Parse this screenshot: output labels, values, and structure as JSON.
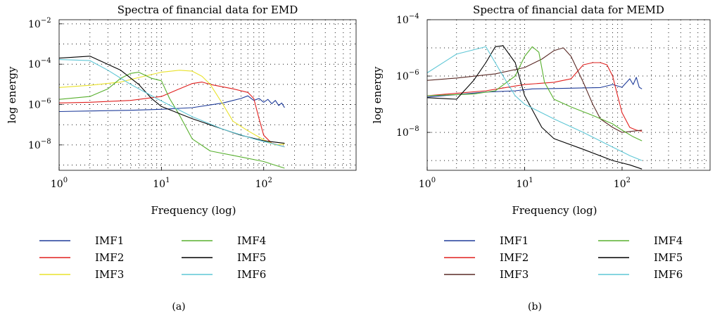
{
  "chart_data": [
    {
      "type": "line",
      "panel_label": "(a)",
      "title": "Spectra of financial data for EMD",
      "xlabel": "Frequency (log)",
      "ylabel": "log energy",
      "xscale": "log",
      "yscale": "log",
      "xlim": [
        1,
        800
      ],
      "ylim": [
        5.5e-10,
        0.016
      ],
      "x_ticks": [
        {
          "base": "10",
          "exp": "0",
          "value": 1
        },
        {
          "base": "10",
          "exp": "1",
          "value": 10
        },
        {
          "base": "10",
          "exp": "2",
          "value": 100
        }
      ],
      "y_ticks": [
        {
          "base": "10",
          "exp": "−8",
          "value": 1e-08
        },
        {
          "base": "10",
          "exp": "−6",
          "value": 1e-06
        },
        {
          "base": "10",
          "exp": "−4",
          "value": 0.0001
        },
        {
          "base": "10",
          "exp": "−2",
          "value": 0.01
        }
      ],
      "grid": true,
      "legend_position": "below",
      "series": [
        {
          "name": "IMF1",
          "color": "#1f3c9a",
          "points": [
            [
              1,
              4.5e-07
            ],
            [
              2,
              4.8e-07
            ],
            [
              5,
              5.2e-07
            ],
            [
              10,
              5.8e-07
            ],
            [
              20,
              7e-07
            ],
            [
              40,
              1.2e-06
            ],
            [
              60,
              2e-06
            ],
            [
              70,
              2.7e-06
            ],
            [
              80,
              1.6e-06
            ],
            [
              90,
              2e-06
            ],
            [
              100,
              1.3e-06
            ],
            [
              110,
              1.8e-06
            ],
            [
              120,
              1.1e-06
            ],
            [
              130,
              1.6e-06
            ],
            [
              140,
              9e-07
            ],
            [
              150,
              1.2e-06
            ],
            [
              160,
              7e-07
            ]
          ]
        },
        {
          "name": "IMF2",
          "color": "#e0201e",
          "points": [
            [
              1,
              1.2e-06
            ],
            [
              2,
              1.3e-06
            ],
            [
              5,
              1.6e-06
            ],
            [
              10,
              2.5e-06
            ],
            [
              15,
              6e-06
            ],
            [
              20,
              1.1e-05
            ],
            [
              25,
              1.3e-05
            ],
            [
              30,
              1e-05
            ],
            [
              50,
              6e-06
            ],
            [
              70,
              4e-06
            ],
            [
              80,
              2e-06
            ],
            [
              90,
              2e-07
            ],
            [
              100,
              3e-08
            ],
            [
              120,
              1.2e-08
            ],
            [
              160,
              8e-09
            ]
          ]
        },
        {
          "name": "IMF3",
          "color": "#e9e22b",
          "points": [
            [
              1,
              7e-06
            ],
            [
              2,
              9e-06
            ],
            [
              4,
              1.3e-05
            ],
            [
              6,
              2.2e-05
            ],
            [
              10,
              4e-05
            ],
            [
              15,
              5e-05
            ],
            [
              20,
              4.5e-05
            ],
            [
              25,
              2.5e-05
            ],
            [
              30,
              1e-05
            ],
            [
              40,
              1e-06
            ],
            [
              50,
              1.5e-07
            ],
            [
              70,
              5e-08
            ],
            [
              100,
              1.8e-08
            ],
            [
              130,
              1e-08
            ],
            [
              160,
              1.1e-08
            ]
          ]
        },
        {
          "name": "IMF4",
          "color": "#58b02e",
          "points": [
            [
              1,
              1.8e-06
            ],
            [
              2,
              2.5e-06
            ],
            [
              3,
              6e-06
            ],
            [
              4,
              2e-05
            ],
            [
              5,
              3.5e-05
            ],
            [
              6,
              4e-05
            ],
            [
              8,
              2e-05
            ],
            [
              10,
              1.5e-05
            ],
            [
              12,
              2e-06
            ],
            [
              15,
              3e-07
            ],
            [
              20,
              2e-08
            ],
            [
              30,
              5e-09
            ],
            [
              60,
              2.5e-09
            ],
            [
              100,
              1.5e-09
            ],
            [
              160,
              7e-10
            ]
          ]
        },
        {
          "name": "IMF5",
          "color": "#000000",
          "points": [
            [
              1,
              0.0002
            ],
            [
              2,
              0.00025
            ],
            [
              4,
              5e-05
            ],
            [
              6,
              1e-05
            ],
            [
              8,
              2e-06
            ],
            [
              10,
              8e-07
            ],
            [
              20,
              2e-07
            ],
            [
              40,
              6e-08
            ],
            [
              60,
              3e-08
            ],
            [
              100,
              1.6e-08
            ],
            [
              160,
              1.2e-08
            ]
          ]
        },
        {
          "name": "IMF6",
          "color": "#5fc7d6",
          "points": [
            [
              1,
              0.00017
            ],
            [
              2,
              0.00015
            ],
            [
              3,
              5e-05
            ],
            [
              5,
              1e-05
            ],
            [
              10,
              1.5e-06
            ],
            [
              20,
              2.5e-07
            ],
            [
              40,
              6e-08
            ],
            [
              80,
              2e-08
            ],
            [
              160,
              8e-09
            ]
          ]
        }
      ]
    },
    {
      "type": "line",
      "panel_label": "(b)",
      "title": "Spectra of financial data for MEMD",
      "xlabel": "Frequency (log)",
      "ylabel": "log energy",
      "xscale": "log",
      "yscale": "log",
      "xlim": [
        1,
        800
      ],
      "ylim": [
        4.5e-10,
        0.0001
      ],
      "x_ticks": [
        {
          "base": "10",
          "exp": "0",
          "value": 1
        },
        {
          "base": "10",
          "exp": "1",
          "value": 10
        },
        {
          "base": "10",
          "exp": "2",
          "value": 100
        }
      ],
      "y_ticks": [
        {
          "base": "10",
          "exp": "−8",
          "value": 1e-08
        },
        {
          "base": "10",
          "exp": "−6",
          "value": 1e-06
        },
        {
          "base": "10",
          "exp": "−4",
          "value": 0.0001
        }
      ],
      "grid": true,
      "legend_position": "below",
      "series": [
        {
          "name": "IMF1",
          "color": "#1f3c9a",
          "points": [
            [
              1,
              1.8e-07
            ],
            [
              2,
              2.2e-07
            ],
            [
              4,
              2.7e-07
            ],
            [
              8,
              3e-07
            ],
            [
              12,
              3.5e-07
            ],
            [
              20,
              3.6e-07
            ],
            [
              40,
              3.8e-07
            ],
            [
              60,
              3.9e-07
            ],
            [
              80,
              5e-07
            ],
            [
              100,
              4e-07
            ],
            [
              120,
              8e-07
            ],
            [
              130,
              5e-07
            ],
            [
              140,
              9e-07
            ],
            [
              150,
              4e-07
            ],
            [
              160,
              3.5e-07
            ]
          ]
        },
        {
          "name": "IMF2",
          "color": "#e0201e",
          "points": [
            [
              1,
              2e-07
            ],
            [
              4,
              3e-07
            ],
            [
              10,
              5e-07
            ],
            [
              20,
              6e-07
            ],
            [
              30,
              8e-07
            ],
            [
              40,
              2.5e-06
            ],
            [
              50,
              3e-06
            ],
            [
              60,
              3e-06
            ],
            [
              70,
              2.5e-06
            ],
            [
              80,
              1e-06
            ],
            [
              90,
              2e-07
            ],
            [
              100,
              5e-08
            ],
            [
              120,
              1.5e-08
            ],
            [
              140,
              1.2e-08
            ],
            [
              160,
              1.1e-08
            ]
          ]
        },
        {
          "name": "IMF3",
          "color": "#5a2a26",
          "points": [
            [
              1,
              7e-07
            ],
            [
              2,
              8.5e-07
            ],
            [
              5,
              1.2e-06
            ],
            [
              10,
              2e-06
            ],
            [
              15,
              4e-06
            ],
            [
              20,
              8e-06
            ],
            [
              25,
              1e-05
            ],
            [
              30,
              5e-06
            ],
            [
              40,
              6e-07
            ],
            [
              50,
              1e-07
            ],
            [
              60,
              3e-08
            ],
            [
              80,
              1.5e-08
            ],
            [
              100,
              1e-08
            ],
            [
              160,
              1.2e-08
            ]
          ]
        },
        {
          "name": "IMF4",
          "color": "#58b02e",
          "points": [
            [
              1,
              2e-07
            ],
            [
              3,
              2.3e-07
            ],
            [
              5,
              3e-07
            ],
            [
              8,
              1e-06
            ],
            [
              10,
              5e-06
            ],
            [
              12,
              1.1e-05
            ],
            [
              14,
              7e-06
            ],
            [
              16,
              6e-07
            ],
            [
              20,
              1.5e-07
            ],
            [
              30,
              8e-08
            ],
            [
              50,
              4e-08
            ],
            [
              80,
              2e-08
            ],
            [
              100,
              1.2e-08
            ],
            [
              130,
              7e-09
            ],
            [
              160,
              5e-09
            ]
          ]
        },
        {
          "name": "IMF5",
          "color": "#000000",
          "points": [
            [
              1,
              1.7e-07
            ],
            [
              2,
              1.5e-07
            ],
            [
              3,
              7e-07
            ],
            [
              4,
              3e-06
            ],
            [
              5,
              1.1e-05
            ],
            [
              6,
              1.2e-05
            ],
            [
              8,
              3e-06
            ],
            [
              10,
              2e-07
            ],
            [
              15,
              1.5e-08
            ],
            [
              20,
              6e-09
            ],
            [
              40,
              2.5e-09
            ],
            [
              80,
              1e-09
            ],
            [
              120,
              7e-10
            ],
            [
              160,
              5e-10
            ]
          ]
        },
        {
          "name": "IMF6",
          "color": "#5fc7d6",
          "points": [
            [
              1,
              1.3e-06
            ],
            [
              2,
              6e-06
            ],
            [
              4,
              1.1e-05
            ],
            [
              6,
              1e-06
            ],
            [
              8,
              2e-07
            ],
            [
              10,
              1e-07
            ],
            [
              20,
              3e-08
            ],
            [
              40,
              1e-08
            ],
            [
              80,
              3e-09
            ],
            [
              120,
              1.5e-09
            ],
            [
              160,
              1e-09
            ]
          ]
        }
      ]
    }
  ]
}
